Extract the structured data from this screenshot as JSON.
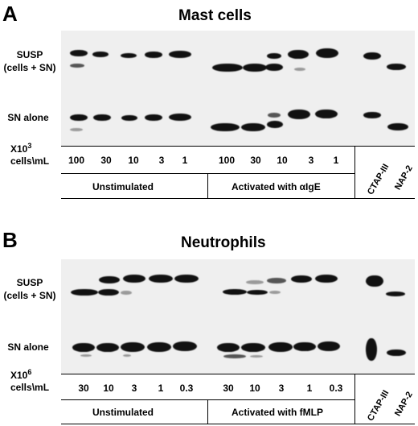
{
  "panel_a": {
    "letter": "A",
    "title": "Mast cells",
    "row1_label": [
      "SUSP",
      "(cells + SN)"
    ],
    "row2_label": "SN alone",
    "unit_base": "X10",
    "unit_exp": "3",
    "unit_rest": "cells\\mL",
    "concentrations": [
      "100",
      "30",
      "10",
      "3",
      "1",
      "100",
      "30",
      "10",
      "3",
      "1"
    ],
    "condition_1": "Unstimulated",
    "condition_2": "Activated with αIgE",
    "standards": [
      "CTAP-III",
      "NAP-2"
    ]
  },
  "panel_b": {
    "letter": "B",
    "title": "Neutrophils",
    "row1_label": [
      "SUSP",
      "(cells + SN)"
    ],
    "row2_label": "SN alone",
    "unit_base": "X10",
    "unit_exp": "6",
    "unit_rest": "cells\\mL",
    "concentrations": [
      "30",
      "10",
      "3",
      "1",
      "0.3",
      "30",
      "10",
      "3",
      "1",
      "0.3"
    ],
    "condition_1": "Unstimulated",
    "condition_2": "Activated with fMLP",
    "standards": [
      "CTAP-III",
      "NAP-2"
    ]
  }
}
